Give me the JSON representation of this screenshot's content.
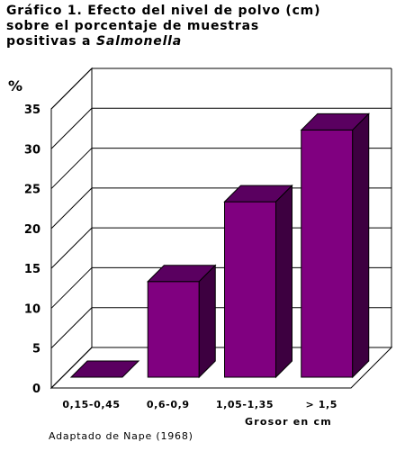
{
  "title": {
    "line1": "Gráfico 1. Efecto del nivel de polvo (cm)",
    "line2": "sobre el porcentaje de muestras",
    "line3_prefix": "positivas a ",
    "line3_italic": "Salmonella"
  },
  "source": "Adaptado de Nape (1968)",
  "chart_data": {
    "type": "bar",
    "categories": [
      "0,15-0,45",
      "0,6-0,9",
      "1,05-1,35",
      "> 1,5"
    ],
    "values": [
      0,
      12,
      22,
      31
    ],
    "ylabel": "%",
    "xlabel": "Grosor en cm",
    "ylim": [
      0,
      35
    ],
    "yticks": [
      0,
      5,
      10,
      15,
      20,
      25,
      30,
      35
    ],
    "grid": true,
    "bar_color": "#800080",
    "bar_top_color": "#5a0060",
    "bar_side_color": "#3d0040"
  }
}
